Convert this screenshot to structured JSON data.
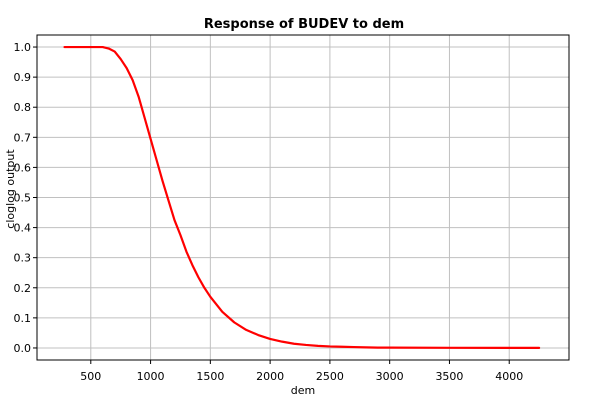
{
  "chart_data": {
    "type": "line",
    "title": "Response of BUDEV to dem",
    "xlabel": "dem",
    "ylabel": "cloglog output",
    "xlim": [
      50,
      4500
    ],
    "ylim": [
      -0.04,
      1.04
    ],
    "xticks": [
      500,
      1000,
      1500,
      2000,
      2500,
      3000,
      3500,
      4000
    ],
    "yticks": [
      0.0,
      0.1,
      0.2,
      0.3,
      0.4,
      0.5,
      0.6,
      0.7,
      0.8,
      0.9,
      1.0
    ],
    "xtick_labels": [
      "500",
      "1000",
      "1500",
      "2000",
      "2500",
      "3000",
      "3500",
      "4000"
    ],
    "ytick_labels": [
      "0.0",
      "0.1",
      "0.2",
      "0.3",
      "0.4",
      "0.5",
      "0.6",
      "0.7",
      "0.8",
      "0.9",
      "1.0"
    ],
    "grid": true,
    "legend": "none",
    "series": [
      {
        "color": "#ff0000",
        "x": [
          280,
          400,
          500,
          600,
          650,
          700,
          750,
          800,
          850,
          900,
          950,
          1000,
          1050,
          1100,
          1150,
          1200,
          1250,
          1300,
          1350,
          1400,
          1450,
          1500,
          1600,
          1700,
          1800,
          1900,
          2000,
          2100,
          2200,
          2300,
          2400,
          2500,
          2600,
          2700,
          2800,
          2900,
          3000,
          3500,
          4000,
          4250
        ],
        "y": [
          1.0,
          1.0,
          1.0,
          1.0,
          0.995,
          0.985,
          0.96,
          0.93,
          0.89,
          0.835,
          0.765,
          0.695,
          0.625,
          0.555,
          0.49,
          0.425,
          0.375,
          0.32,
          0.275,
          0.235,
          0.2,
          0.17,
          0.12,
          0.085,
          0.06,
          0.043,
          0.03,
          0.021,
          0.014,
          0.01,
          0.007,
          0.005,
          0.004,
          0.003,
          0.002,
          0.001,
          0.001,
          0.0005,
          0.0003,
          0.0003
        ]
      }
    ]
  }
}
